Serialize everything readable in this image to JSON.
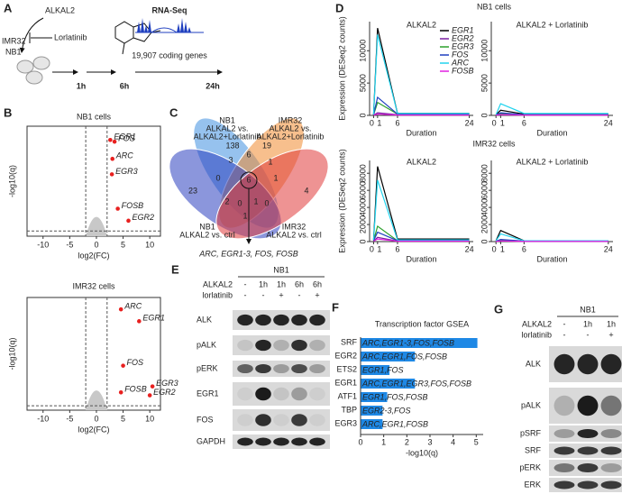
{
  "a": {
    "label": "A",
    "ligand": "ALKAL2",
    "inhibitor": "Lorlatinib",
    "cell_lines": [
      "IMR32",
      "NB1"
    ],
    "timepoints": [
      "1h",
      "6h",
      "24h"
    ],
    "assay": "RNA-Seq",
    "genes": "19,907 coding genes"
  },
  "b": {
    "label": "B",
    "xlabel": "log2(FC)",
    "ylabel": "-log10(q)",
    "xlim": [
      -13,
      12
    ],
    "xticks": [
      -10,
      -5,
      0,
      5,
      10
    ],
    "fc_threshold": [
      -2,
      2
    ],
    "q_threshold": 1.5,
    "color": "#e8201f",
    "plots": [
      {
        "title": "NB1 cells",
        "ylim": [
          0,
          32
        ],
        "genes": [
          "EGR1",
          "FOS",
          "ARC",
          "EGR3",
          "FOSB",
          "EGR2"
        ],
        "x": [
          2.6,
          3.4,
          3.0,
          2.9,
          4.0,
          6.0
        ],
        "y": [
          28,
          27.5,
          22.5,
          18,
          8,
          4.5
        ]
      },
      {
        "title": "IMR32 cells",
        "ylim": [
          0,
          38
        ],
        "genes": [
          "ARC",
          "EGR1",
          "FOS",
          "EGR3",
          "FOSB",
          "EGR2"
        ],
        "x": [
          4.6,
          8.0,
          5.0,
          10.5,
          4.6,
          10.0
        ],
        "y": [
          34,
          30,
          15,
          8,
          6,
          5
        ]
      }
    ]
  },
  "c": {
    "label": "C",
    "sets": [
      {
        "lines": [
          "NB1",
          "ALKAL2 vs.",
          "ALKAL2+Lorlatinib"
        ],
        "color": "#3f8fe0"
      },
      {
        "lines": [
          "IMR32",
          "ALKAL2 vs.",
          "ALKAL2+Lorlatinib"
        ],
        "color": "#f08a30"
      },
      {
        "lines": [
          "NB1",
          "ALKAL2 vs. ctrl"
        ],
        "color": "#2b3fc0"
      },
      {
        "lines": [
          "IMR32",
          "ALKAL2 vs. ctrl"
        ],
        "color": "#e03a3a"
      }
    ],
    "counts": [
      23,
      138,
      19,
      4,
      3,
      6,
      1,
      0,
      2,
      0,
      6,
      1,
      1,
      0,
      1
    ],
    "shared_genes": "ARC, EGR1-3, FOS, FOSB"
  },
  "d": {
    "label": "D",
    "xlabel": "Duration",
    "ylabel": "Expression (DESeq2 counts)",
    "x": [
      0,
      1,
      6,
      24
    ],
    "xlim": [
      -1,
      25
    ],
    "xticks": [
      0,
      1,
      6,
      24
    ],
    "series": [
      {
        "name": "EGR1",
        "color": "#000000"
      },
      {
        "name": "EGR2",
        "color": "#7a1fa2"
      },
      {
        "name": "EGR3",
        "color": "#2ca02c"
      },
      {
        "name": "FOS",
        "color": "#1f3fbf"
      },
      {
        "name": "ARC",
        "color": "#22d3ee"
      },
      {
        "name": "FOSB",
        "color": "#e020e0"
      }
    ],
    "groups": [
      {
        "title": "NB1 cells",
        "ylim": [
          0,
          14500
        ],
        "yticks": [
          0,
          5000,
          10000
        ],
        "plots": [
          {
            "title": "ALKAL2",
            "values": [
              [
                100,
                13500,
                300,
                300
              ],
              [
                50,
                400,
                100,
                100
              ],
              [
                100,
                2000,
                200,
                200
              ],
              [
                100,
                2800,
                200,
                200
              ],
              [
                100,
                12500,
                300,
                300
              ],
              [
                50,
                200,
                50,
                50
              ]
            ]
          },
          {
            "title": "ALKAL2 + Lorlatinib",
            "values": [
              [
                100,
                800,
                200,
                200
              ],
              [
                50,
                150,
                50,
                50
              ],
              [
                80,
                300,
                100,
                100
              ],
              [
                80,
                400,
                100,
                100
              ],
              [
                100,
                1800,
                300,
                300
              ],
              [
                50,
                100,
                50,
                50
              ]
            ]
          }
        ]
      },
      {
        "title": "IMR32 cells",
        "ylim": [
          0,
          9500
        ],
        "yticks": [
          0,
          2000,
          4000,
          6000,
          8000
        ],
        "plots": [
          {
            "title": "ALKAL2",
            "values": [
              [
                200,
                8800,
                300,
                300
              ],
              [
                50,
                500,
                50,
                50
              ],
              [
                100,
                1800,
                100,
                100
              ],
              [
                100,
                1100,
                100,
                100
              ],
              [
                200,
                7200,
                200,
                200
              ],
              [
                50,
                300,
                50,
                50
              ]
            ]
          },
          {
            "title": "ALKAL2 + Lorlatinib",
            "values": [
              [
                100,
                1300,
                100,
                100
              ],
              [
                30,
                100,
                30,
                30
              ],
              [
                50,
                200,
                50,
                50
              ],
              [
                50,
                250,
                50,
                50
              ],
              [
                100,
                900,
                100,
                100
              ],
              [
                30,
                80,
                30,
                30
              ]
            ]
          }
        ]
      }
    ]
  },
  "e": {
    "label": "E",
    "cell_line": "NB1",
    "treatments": [
      "ALKAL2",
      "lorlatinib"
    ],
    "lanes": [
      [
        "-",
        "1h",
        "1h",
        "6h",
        "6h"
      ],
      [
        "-",
        "-",
        "+",
        "-",
        "+"
      ]
    ],
    "blots": [
      "ALK",
      "pALK",
      "pERK",
      "EGR1",
      "FOS",
      "GAPDH"
    ]
  },
  "f": {
    "label": "F",
    "title": "Transcription factor GSEA",
    "xlabel": "-log10(q)",
    "xlim": [
      0,
      5.3
    ],
    "xticks": [
      0,
      1,
      2,
      3,
      4,
      5
    ],
    "color": "#1e88e5",
    "categories": [
      "SRF",
      "EGR2",
      "ETS2",
      "EGR1",
      "ATF1",
      "TBP",
      "EGR3"
    ],
    "values": [
      5.05,
      2.35,
      1.25,
      2.35,
      1.15,
      0.95,
      0.95
    ],
    "gene_lists": [
      "ARC,EGR1-3,FOS,FOSB",
      "ARC,EGR1,FOS,FOSB",
      "EGR1,FOS",
      "ARC,EGR1,EGR3,FOS,FOSB",
      "EGR1,FOS,FOSB",
      "EGR2-3,FOS",
      "ARC,EGR1,FOSB"
    ]
  },
  "g": {
    "label": "G",
    "cell_line": "NB1",
    "treatments": [
      "ALKAL2",
      "lorlatinib"
    ],
    "lanes": [
      [
        "-",
        "1h",
        "1h"
      ],
      [
        "-",
        "-",
        "+"
      ]
    ],
    "blots": [
      "ALK",
      "pALK",
      "pSRF",
      "SRF",
      "pERK",
      "ERK"
    ]
  }
}
